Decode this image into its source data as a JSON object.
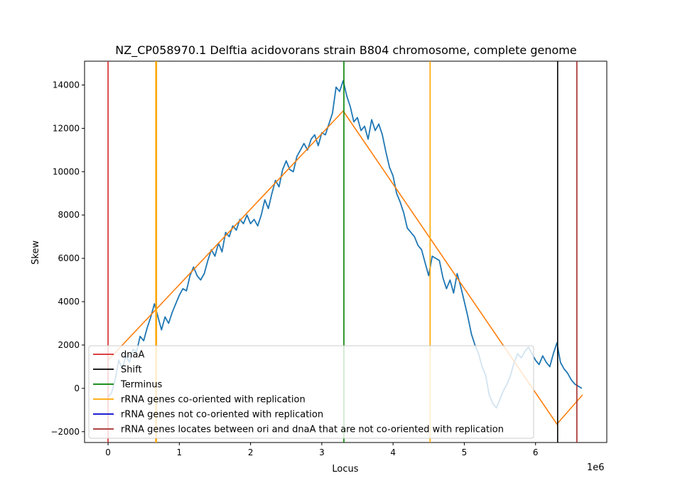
{
  "chart_data": {
    "type": "line",
    "title": "NZ_CP058970.1 Delftia acidovorans strain B804 chromosome, complete genome",
    "xlabel": "Locus",
    "ylabel": "Skew",
    "x_offset_label": "1e6",
    "xlim": [
      -0.33,
      7.0
    ],
    "ylim": [
      -2500,
      15100
    ],
    "xticks": [
      0,
      1,
      2,
      3,
      4,
      5,
      6
    ],
    "yticks": [
      -2000,
      0,
      2000,
      4000,
      6000,
      8000,
      10000,
      12000,
      14000
    ],
    "grid": false,
    "legend_position": "lower-left",
    "series": [
      {
        "color": "#1f77b4",
        "points": [
          [
            0,
            -400
          ],
          [
            0.05,
            -200
          ],
          [
            0.1,
            400
          ],
          [
            0.15,
            1300
          ],
          [
            0.2,
            900
          ],
          [
            0.25,
            1500
          ],
          [
            0.3,
            1200
          ],
          [
            0.35,
            1800
          ],
          [
            0.4,
            1700
          ],
          [
            0.45,
            2400
          ],
          [
            0.5,
            2200
          ],
          [
            0.55,
            2800
          ],
          [
            0.6,
            3300
          ],
          [
            0.65,
            3900
          ],
          [
            0.7,
            3300
          ],
          [
            0.75,
            2700
          ],
          [
            0.8,
            3300
          ],
          [
            0.85,
            3000
          ],
          [
            0.9,
            3500
          ],
          [
            0.95,
            3900
          ],
          [
            1.0,
            4300
          ],
          [
            1.05,
            4600
          ],
          [
            1.1,
            4500
          ],
          [
            1.15,
            5200
          ],
          [
            1.2,
            5600
          ],
          [
            1.25,
            5200
          ],
          [
            1.3,
            5000
          ],
          [
            1.35,
            5300
          ],
          [
            1.4,
            5900
          ],
          [
            1.45,
            6400
          ],
          [
            1.5,
            6100
          ],
          [
            1.55,
            6700
          ],
          [
            1.6,
            6300
          ],
          [
            1.65,
            7200
          ],
          [
            1.7,
            7000
          ],
          [
            1.75,
            7500
          ],
          [
            1.8,
            7300
          ],
          [
            1.85,
            7800
          ],
          [
            1.9,
            7600
          ],
          [
            1.95,
            8000
          ],
          [
            2.0,
            7600
          ],
          [
            2.05,
            7800
          ],
          [
            2.1,
            7500
          ],
          [
            2.15,
            8000
          ],
          [
            2.2,
            8700
          ],
          [
            2.25,
            8300
          ],
          [
            2.3,
            9000
          ],
          [
            2.35,
            9600
          ],
          [
            2.4,
            9300
          ],
          [
            2.45,
            10100
          ],
          [
            2.5,
            10500
          ],
          [
            2.55,
            10100
          ],
          [
            2.6,
            10000
          ],
          [
            2.65,
            10700
          ],
          [
            2.7,
            11000
          ],
          [
            2.75,
            11300
          ],
          [
            2.8,
            11000
          ],
          [
            2.85,
            11500
          ],
          [
            2.9,
            11700
          ],
          [
            2.95,
            11200
          ],
          [
            3.0,
            11800
          ],
          [
            3.05,
            11700
          ],
          [
            3.1,
            12200
          ],
          [
            3.15,
            12700
          ],
          [
            3.2,
            13900
          ],
          [
            3.25,
            13700
          ],
          [
            3.3,
            14200
          ],
          [
            3.35,
            13500
          ],
          [
            3.4,
            13000
          ],
          [
            3.45,
            12300
          ],
          [
            3.5,
            12500
          ],
          [
            3.55,
            11900
          ],
          [
            3.6,
            12100
          ],
          [
            3.65,
            11500
          ],
          [
            3.7,
            12400
          ],
          [
            3.75,
            11900
          ],
          [
            3.8,
            12200
          ],
          [
            3.85,
            11700
          ],
          [
            3.9,
            10900
          ],
          [
            3.95,
            10200
          ],
          [
            4.0,
            9800
          ],
          [
            4.05,
            9000
          ],
          [
            4.1,
            8600
          ],
          [
            4.15,
            8100
          ],
          [
            4.2,
            7400
          ],
          [
            4.25,
            7200
          ],
          [
            4.3,
            7000
          ],
          [
            4.35,
            6600
          ],
          [
            4.4,
            6400
          ],
          [
            4.45,
            5800
          ],
          [
            4.5,
            5200
          ],
          [
            4.55,
            6100
          ],
          [
            4.6,
            6000
          ],
          [
            4.65,
            5900
          ],
          [
            4.7,
            5100
          ],
          [
            4.75,
            4600
          ],
          [
            4.8,
            5000
          ],
          [
            4.85,
            4400
          ],
          [
            4.9,
            5300
          ],
          [
            4.95,
            4700
          ],
          [
            5.0,
            4000
          ],
          [
            5.05,
            3300
          ],
          [
            5.1,
            2500
          ],
          [
            5.15,
            2000
          ],
          [
            5.2,
            1600
          ],
          [
            5.25,
            1000
          ],
          [
            5.3,
            600
          ],
          [
            5.35,
            -300
          ],
          [
            5.4,
            -700
          ],
          [
            5.45,
            -900
          ],
          [
            5.5,
            -500
          ],
          [
            5.55,
            -100
          ],
          [
            5.6,
            200
          ],
          [
            5.65,
            600
          ],
          [
            5.7,
            1200
          ],
          [
            5.75,
            1600
          ],
          [
            5.8,
            1400
          ],
          [
            5.85,
            1700
          ],
          [
            5.9,
            1900
          ],
          [
            5.95,
            1600
          ],
          [
            6.0,
            1300
          ],
          [
            6.05,
            1100
          ],
          [
            6.1,
            1500
          ],
          [
            6.15,
            1200
          ],
          [
            6.2,
            1000
          ],
          [
            6.25,
            1600
          ],
          [
            6.3,
            2100
          ],
          [
            6.35,
            1200
          ],
          [
            6.4,
            900
          ],
          [
            6.45,
            700
          ],
          [
            6.5,
            400
          ],
          [
            6.55,
            200
          ],
          [
            6.6,
            100
          ],
          [
            6.65,
            0
          ]
        ]
      },
      {
        "color": "#ff7f0e",
        "points": [
          [
            0,
            1300
          ],
          [
            3.3,
            12800
          ],
          [
            6.3,
            -1650
          ],
          [
            6.66,
            -300
          ]
        ]
      }
    ],
    "vertical_lines": [
      {
        "name": "dnaA",
        "x": 0.0,
        "color": "#d62728"
      },
      {
        "name": "Shift",
        "x": 6.31,
        "color": "#000000"
      },
      {
        "name": "Terminus",
        "x": 3.31,
        "color": "#008000"
      },
      {
        "name": "rRNA genes co-oriented with replication",
        "x": 0.67,
        "color": "#ffa500"
      },
      {
        "name": "rRNA genes co-oriented with replication",
        "x": 0.68,
        "color": "#ffa500"
      },
      {
        "name": "rRNA genes co-oriented with replication",
        "x": 4.52,
        "color": "#ffa500"
      },
      {
        "name": "rRNA genes locates between ori and dnaA that are not co-oriented with replication",
        "x": 6.58,
        "color": "#a52a2a"
      }
    ],
    "legend": [
      {
        "label": "dnaA",
        "color": "#d62728"
      },
      {
        "label": "Shift",
        "color": "#000000"
      },
      {
        "label": "Terminus",
        "color": "#008000"
      },
      {
        "label": "rRNA genes co-oriented with replication",
        "color": "#ffa500"
      },
      {
        "label": "rRNA genes not co-oriented with replication",
        "color": "#0000cd"
      },
      {
        "label": "rRNA genes locates between ori and dnaA that are not co-oriented with replication",
        "color": "#a52a2a"
      }
    ]
  }
}
